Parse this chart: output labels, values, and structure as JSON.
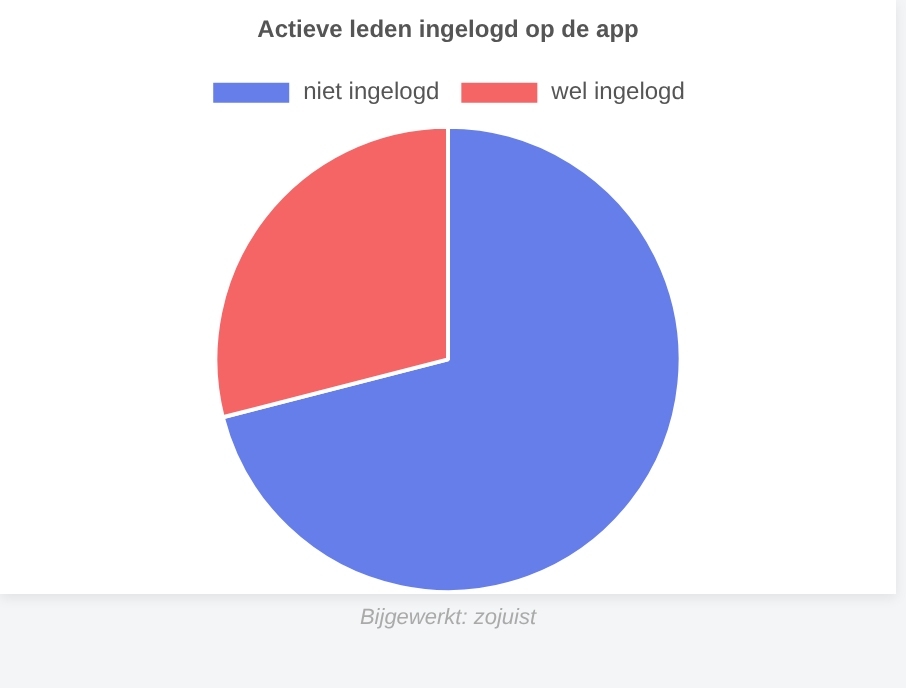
{
  "chart_data": {
    "type": "pie",
    "title": "Actieve leden ingelogd op de app",
    "categories": [
      "niet ingelogd",
      "wel ingelogd"
    ],
    "values": [
      71,
      29
    ],
    "colors": [
      "#667eea",
      "#f56565"
    ],
    "legend": "top",
    "annotations": [
      "Bijgewerkt: zojuist"
    ]
  }
}
